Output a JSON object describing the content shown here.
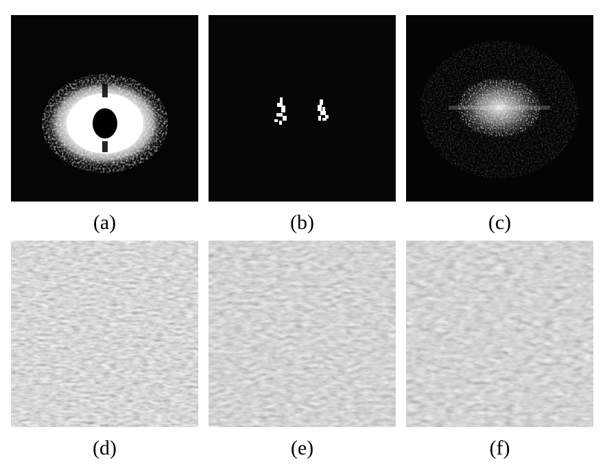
{
  "panels": [
    {
      "id": "a",
      "label": "(a)",
      "kind": "spectrum-ring"
    },
    {
      "id": "b",
      "label": "(b)",
      "kind": "spectrum-two-lobes"
    },
    {
      "id": "c",
      "label": "(c)",
      "kind": "spectrum-diffuse"
    },
    {
      "id": "d",
      "label": "(d)",
      "kind": "texture"
    },
    {
      "id": "e",
      "label": "(e)",
      "kind": "texture"
    },
    {
      "id": "f",
      "label": "(f)",
      "kind": "texture"
    }
  ],
  "colors": {
    "background": "#ffffff",
    "spectrum_bg": "#000000",
    "spectrum_bright": "#ffffff",
    "texture_mid": "#7f7f7f"
  }
}
